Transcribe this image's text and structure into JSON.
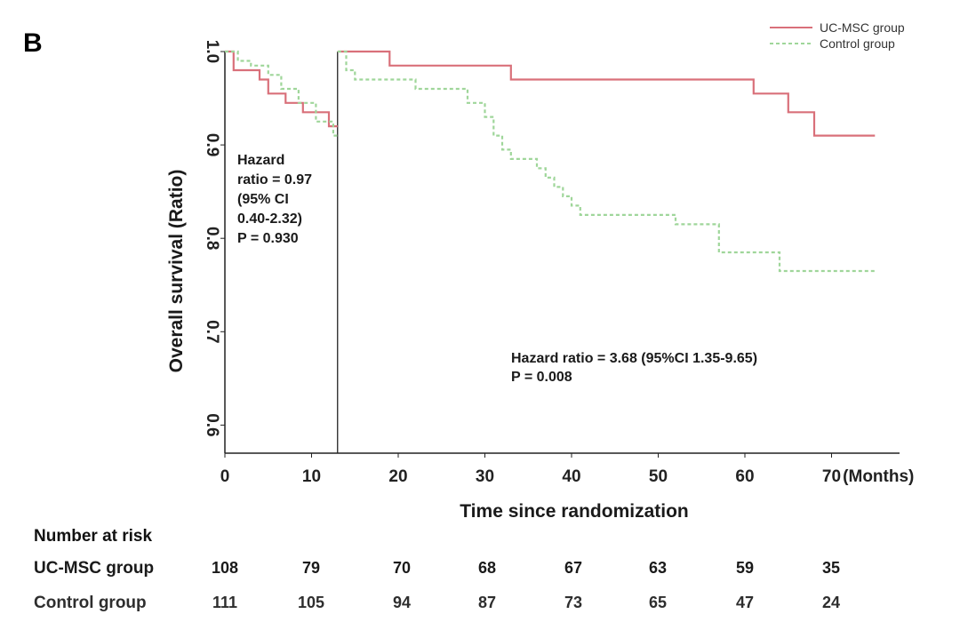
{
  "panel_label": "B",
  "chart_data": {
    "type": "line",
    "title": "",
    "xlabel": "Time since randomization",
    "x_unit_label": "(Months)",
    "ylabel": "Overall survival (Ratio)",
    "xlim": [
      0,
      78
    ],
    "ylim": [
      0.58,
      1.0
    ],
    "xticks": [
      0,
      10,
      20,
      30,
      40,
      50,
      60,
      70
    ],
    "yticks": [
      0.6,
      0.7,
      0.8,
      0.9,
      1.0
    ],
    "ytick_labels": [
      "0.6",
      "0.7",
      "0.8",
      "0.9",
      "1.0"
    ],
    "landmark_x": 13,
    "grid": false,
    "legend_position": "top-right",
    "series": [
      {
        "name": "UC-MSC group",
        "color": "#d9707a",
        "style": "solid",
        "segments": [
          [
            [
              0,
              1.0
            ],
            [
              1,
              1.0
            ],
            [
              1,
              0.98
            ],
            [
              4,
              0.98
            ],
            [
              4,
              0.97
            ],
            [
              5,
              0.97
            ],
            [
              5,
              0.955
            ],
            [
              7,
              0.955
            ],
            [
              7,
              0.945
            ],
            [
              9,
              0.945
            ],
            [
              9,
              0.935
            ],
            [
              12,
              0.935
            ],
            [
              12,
              0.92
            ],
            [
              13,
              0.92
            ]
          ],
          [
            [
              13,
              1.0
            ],
            [
              19,
              1.0
            ],
            [
              19,
              0.985
            ],
            [
              33,
              0.985
            ],
            [
              33,
              0.97
            ],
            [
              61,
              0.97
            ],
            [
              61,
              0.955
            ],
            [
              65,
              0.955
            ],
            [
              65,
              0.935
            ],
            [
              68,
              0.935
            ],
            [
              68,
              0.91
            ],
            [
              75,
              0.91
            ]
          ]
        ]
      },
      {
        "name": "Control group",
        "color": "#9fd69a",
        "style": "dashed",
        "segments": [
          [
            [
              0,
              1.0
            ],
            [
              1.5,
              1.0
            ],
            [
              1.5,
              0.99
            ],
            [
              3,
              0.99
            ],
            [
              3,
              0.985
            ],
            [
              5,
              0.985
            ],
            [
              5,
              0.975
            ],
            [
              6.5,
              0.975
            ],
            [
              6.5,
              0.96
            ],
            [
              8.5,
              0.96
            ],
            [
              8.5,
              0.945
            ],
            [
              10.5,
              0.945
            ],
            [
              10.5,
              0.925
            ],
            [
              12.5,
              0.925
            ],
            [
              12.5,
              0.91
            ],
            [
              13,
              0.91
            ]
          ],
          [
            [
              13,
              1.0
            ],
            [
              14,
              1.0
            ],
            [
              14,
              0.98
            ],
            [
              15,
              0.98
            ],
            [
              15,
              0.97
            ],
            [
              22,
              0.97
            ],
            [
              22,
              0.96
            ],
            [
              28,
              0.96
            ],
            [
              28,
              0.945
            ],
            [
              30,
              0.945
            ],
            [
              30,
              0.93
            ],
            [
              31,
              0.93
            ],
            [
              31,
              0.91
            ],
            [
              32,
              0.91
            ],
            [
              32,
              0.895
            ],
            [
              33,
              0.895
            ],
            [
              33,
              0.885
            ],
            [
              36,
              0.885
            ],
            [
              36,
              0.875
            ],
            [
              37,
              0.875
            ],
            [
              37,
              0.865
            ],
            [
              38,
              0.865
            ],
            [
              38,
              0.855
            ],
            [
              39,
              0.855
            ],
            [
              39,
              0.845
            ],
            [
              40,
              0.845
            ],
            [
              40,
              0.835
            ],
            [
              41,
              0.835
            ],
            [
              41,
              0.825
            ],
            [
              52,
              0.825
            ],
            [
              52,
              0.815
            ],
            [
              57,
              0.815
            ],
            [
              57,
              0.785
            ],
            [
              64,
              0.785
            ],
            [
              64,
              0.765
            ],
            [
              75,
              0.765
            ]
          ]
        ]
      }
    ],
    "annotations": [
      {
        "id": "early",
        "lines": [
          "Hazard",
          "ratio = 0.97",
          "(95% CI",
          " 0.40-2.32)",
          "P = 0.930"
        ]
      },
      {
        "id": "late",
        "lines": [
          "Hazard ratio = 3.68 (95%CI 1.35-9.65)",
          "P = 0.008"
        ]
      }
    ]
  },
  "risk_table": {
    "header": "Number at risk",
    "rows": [
      {
        "label": "UC-MSC  group",
        "color": "#1a1a1a",
        "values": [
          "108",
          "79",
          "70",
          "68",
          "67",
          "63",
          "59",
          "35"
        ]
      },
      {
        "label": "Control group",
        "color": "#2e2e2e",
        "values": [
          "111",
          "105",
          "94",
          "87",
          "73",
          "65",
          "47",
          "24"
        ]
      }
    ]
  }
}
